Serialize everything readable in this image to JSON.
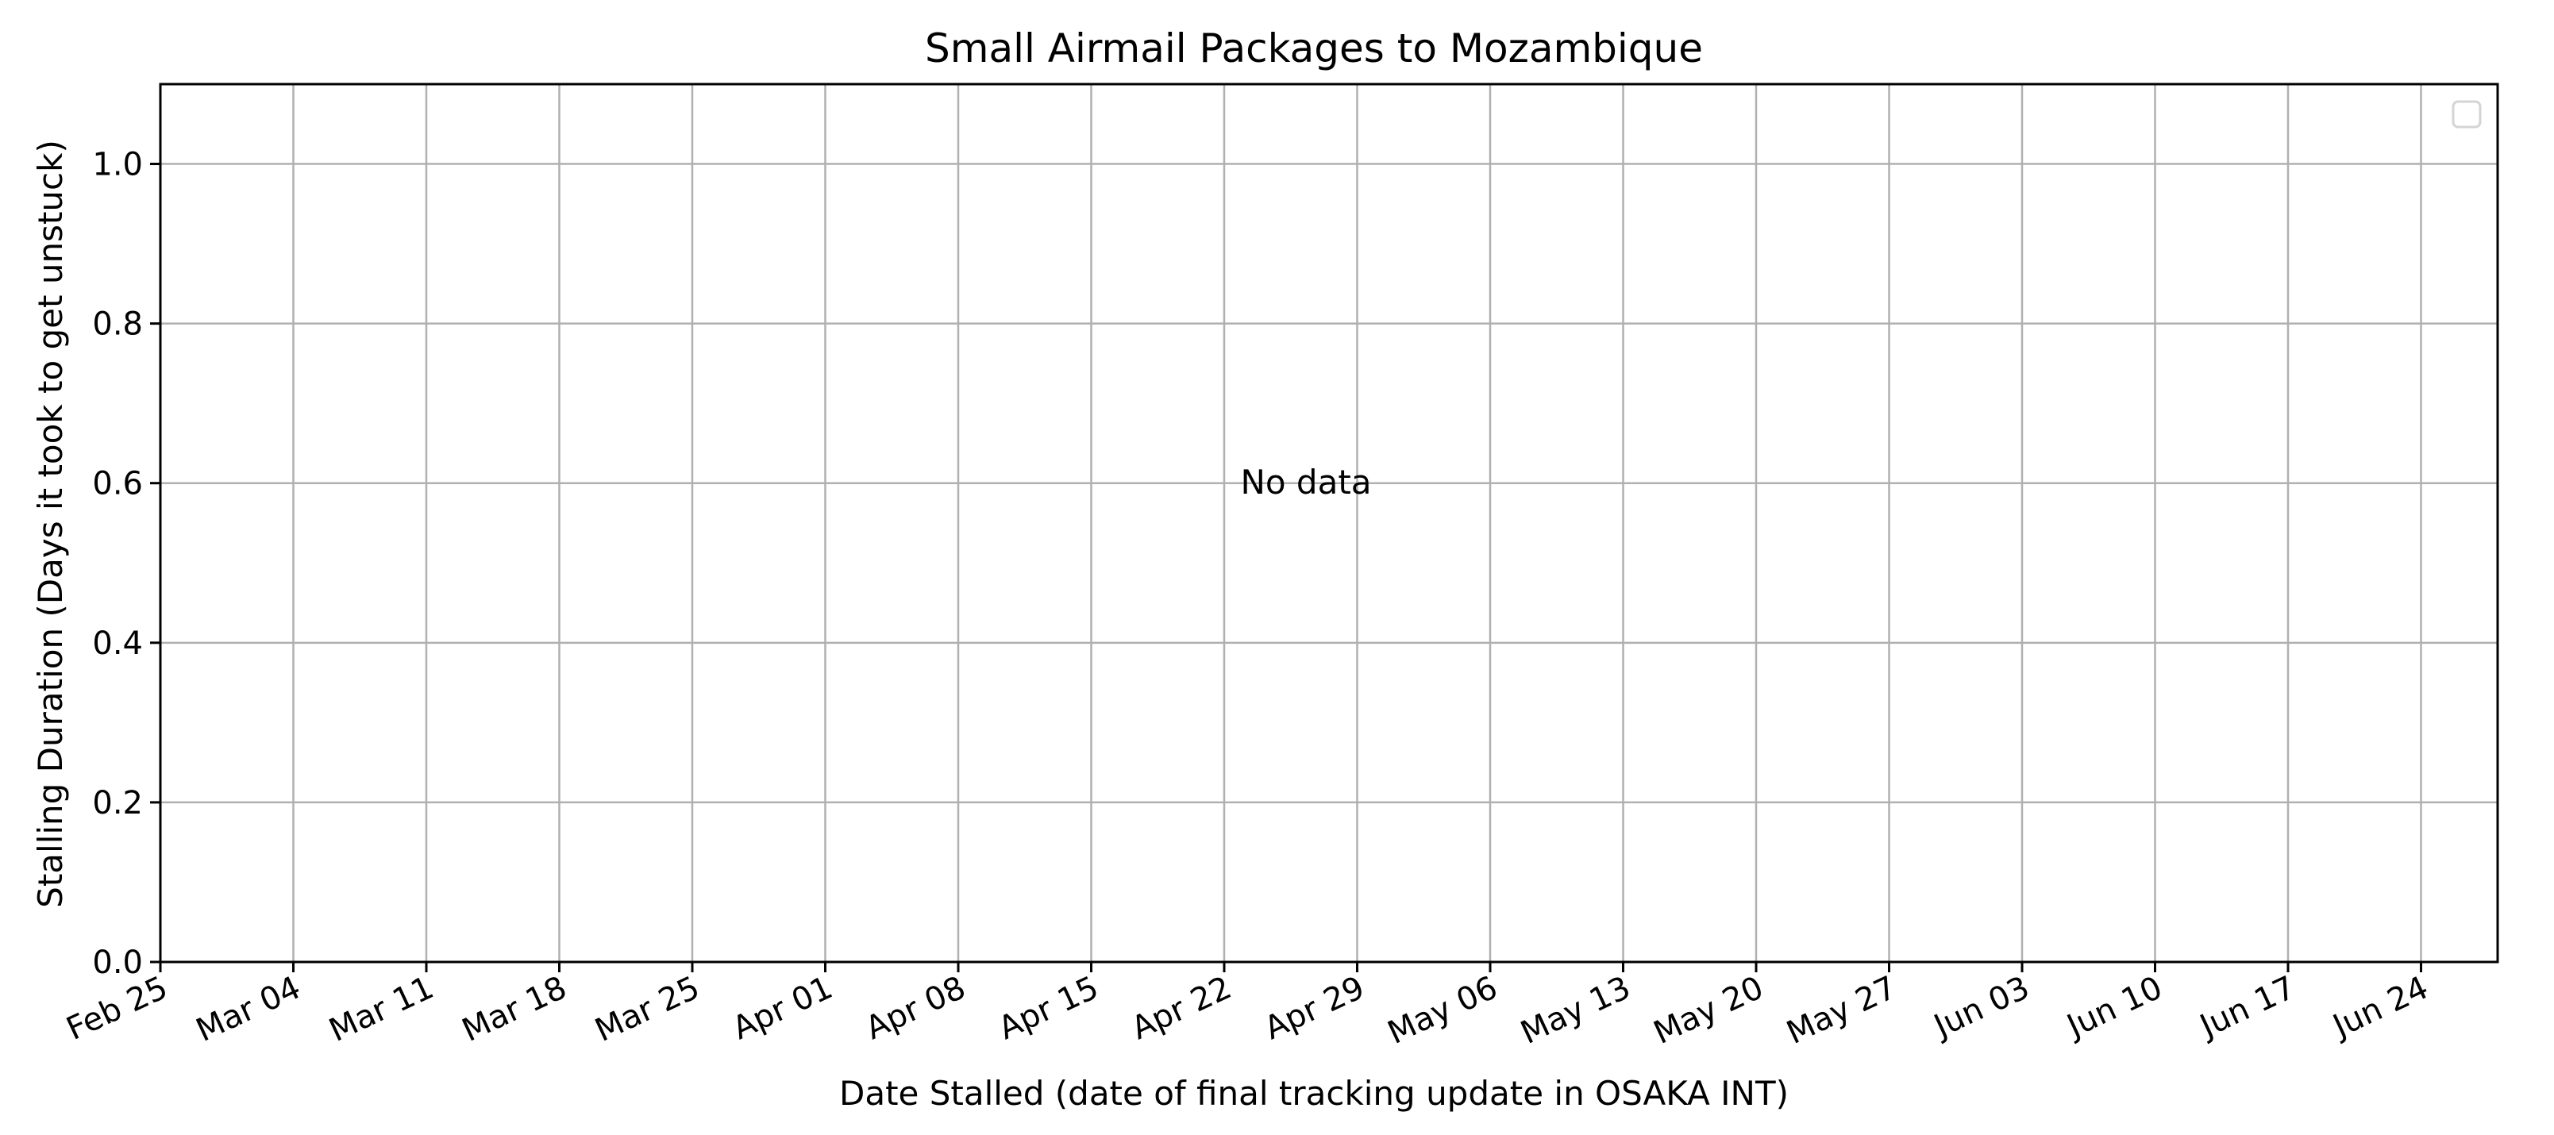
{
  "chart_data": {
    "type": "line",
    "title": "Small Airmail Packages to Mozambique",
    "xlabel": "Date Stalled (date of final tracking update in OSAKA INT)",
    "ylabel": "Stalling Duration (Days it took to get unstuck)",
    "empty_message": "No data",
    "x_axis": {
      "type": "date",
      "ticks": [
        "Feb 25",
        "Mar 04",
        "Mar 11",
        "Mar 18",
        "Mar 25",
        "Apr 01",
        "Apr 08",
        "Apr 15",
        "Apr 22",
        "Apr 29",
        "May 06",
        "May 13",
        "May 20",
        "May 27",
        "Jun 03",
        "Jun 10",
        "Jun 17",
        "Jun 24"
      ]
    },
    "y_axis": {
      "ylim": [
        0.0,
        1.1
      ],
      "ticks": [
        "0.0",
        "0.2",
        "0.4",
        "0.6",
        "0.8",
        "1.0"
      ]
    },
    "grid": true,
    "legend": {
      "placement": "upper-right",
      "entries": []
    },
    "series": []
  },
  "colors": {
    "grid": "#b0b0b0",
    "axes": "#000000",
    "legend_border": "#d4d4d4"
  }
}
